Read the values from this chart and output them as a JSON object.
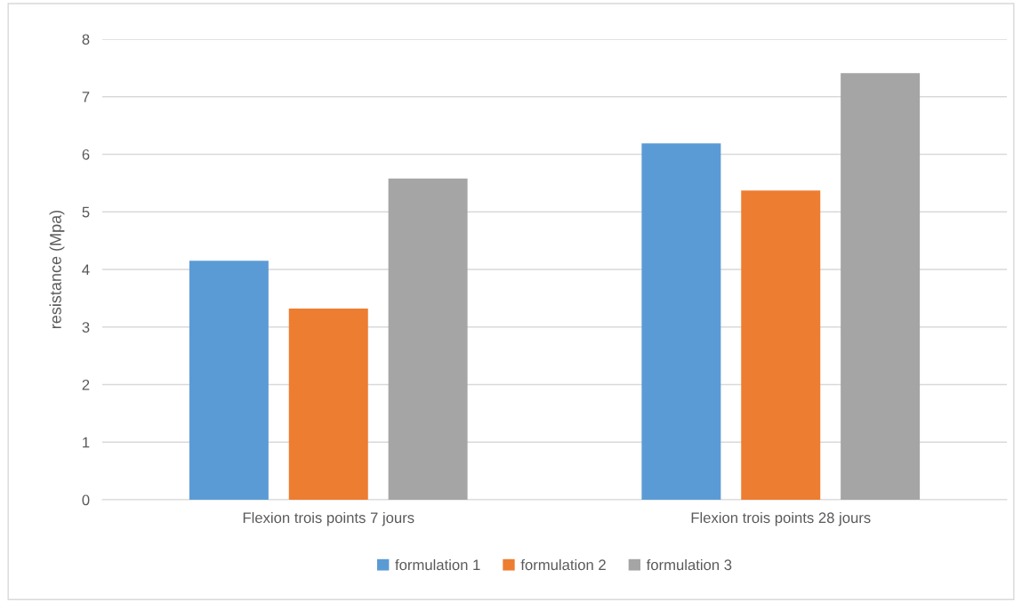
{
  "chart_data": {
    "type": "bar",
    "ylabel": "resistance (Mpa)",
    "categories": [
      "Flexion trois points 7 jours",
      "Flexion trois points 28 jours"
    ],
    "series": [
      {
        "name": "formulation 1",
        "color": "#5b9bd5",
        "values": [
          4.15,
          6.19
        ]
      },
      {
        "name": "formulation 2",
        "color": "#ed7d31",
        "values": [
          3.32,
          5.37
        ]
      },
      {
        "name": "formulation 3",
        "color": "#a5a5a5",
        "values": [
          5.58,
          7.41
        ]
      }
    ],
    "ylim": [
      0,
      8
    ],
    "yticks": [
      0,
      1,
      2,
      3,
      4,
      5,
      6,
      7,
      8
    ],
    "grid": "y",
    "legend": "bottom"
  }
}
